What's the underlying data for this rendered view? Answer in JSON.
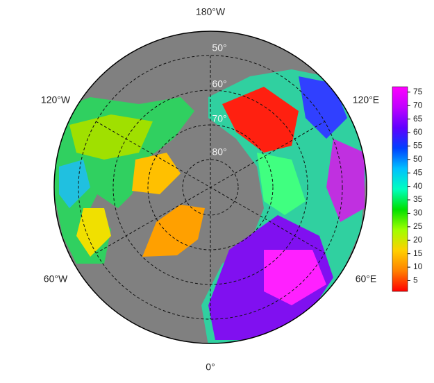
{
  "map": {
    "longitude_labels": [
      "180°W",
      "120°W",
      "120°E",
      "60°W",
      "60°E",
      "0°"
    ],
    "latitude_labels": [
      "50°",
      "60°",
      "70°",
      "80°"
    ],
    "colorbar": {
      "range": [
        1,
        77
      ],
      "ticks": [
        5,
        10,
        15,
        20,
        25,
        30,
        35,
        40,
        45,
        50,
        55,
        60,
        65,
        70,
        75
      ],
      "colors": [
        "#ff0000",
        "#ff8000",
        "#ffd000",
        "#a0ff00",
        "#00e000",
        "#00ffc0",
        "#00c0ff",
        "#0040ff",
        "#6000ff",
        "#c000ff",
        "#ff00ff"
      ]
    }
  }
}
